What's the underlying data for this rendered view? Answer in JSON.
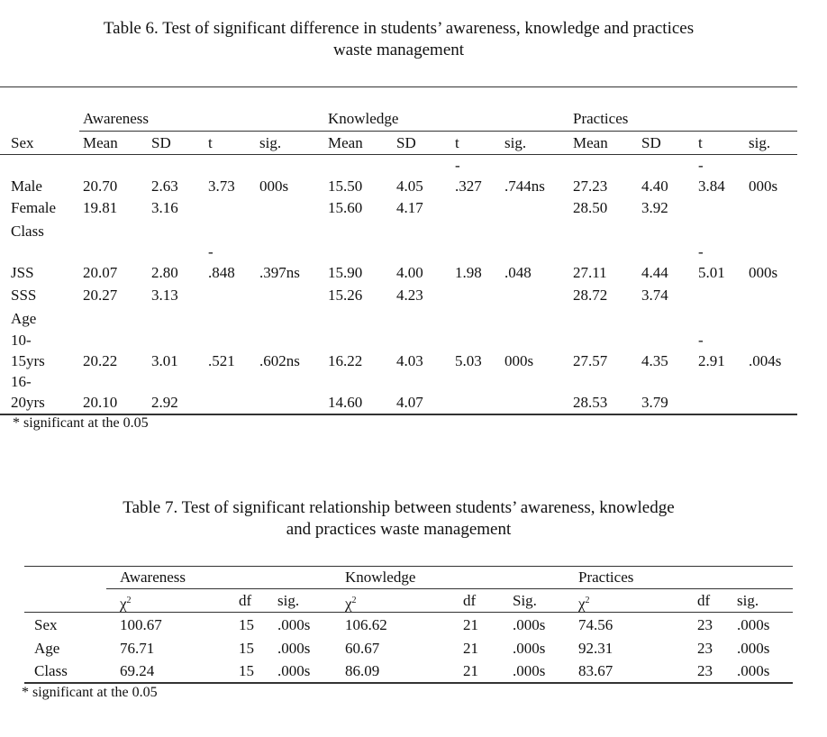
{
  "table6": {
    "title_line1": "Table 6. Test of significant difference in students’ awareness, knowledge and practices",
    "title_line2": "waste management",
    "groups": [
      "Awareness",
      "Knowledge",
      "Practices"
    ],
    "columns": [
      "Sex",
      "Mean",
      "SD",
      "t",
      "sig.",
      "Mean",
      "SD",
      "t",
      "sig.",
      "Mean",
      "SD",
      "t",
      "sig."
    ],
    "rows": [
      [
        "",
        "",
        "",
        "",
        "",
        "",
        "",
        "-",
        "",
        "",
        "",
        "-",
        ""
      ],
      [
        "Male",
        "20.70",
        "2.63",
        "3.73",
        "000s",
        "15.50",
        "4.05",
        ".327",
        ".744ns",
        "27.23",
        "4.40",
        "3.84",
        "000s"
      ],
      [
        "Female",
        "19.81",
        "3.16",
        "",
        "",
        "15.60",
        "4.17",
        "",
        "",
        "28.50",
        "3.92",
        "",
        ""
      ],
      [
        "Class",
        "",
        "",
        "",
        "",
        "",
        "",
        "",
        "",
        "",
        "",
        "",
        ""
      ],
      [
        "",
        "",
        "",
        "-",
        "",
        "",
        "",
        "",
        "",
        "",
        "",
        "-",
        ""
      ],
      [
        "JSS",
        "20.07",
        "2.80",
        ".848",
        ".397ns",
        "15.90",
        "4.00",
        "1.98",
        ".048",
        "27.11",
        "4.44",
        "5.01",
        "000s"
      ],
      [
        "SSS",
        "20.27",
        "3.13",
        "",
        "",
        "15.26",
        "4.23",
        "",
        "",
        "28.72",
        "3.74",
        "",
        ""
      ],
      [
        "Age",
        "",
        "",
        "",
        "",
        "",
        "",
        "",
        "",
        "",
        "",
        "",
        ""
      ],
      [
        "10-",
        "",
        "",
        "",
        "",
        "",
        "",
        "",
        "",
        "",
        "",
        "-",
        ""
      ],
      [
        "15yrs",
        "20.22",
        "3.01",
        ".521",
        ".602ns",
        "16.22",
        "4.03",
        "5.03",
        "000s",
        "27.57",
        "4.35",
        "2.91",
        ".004s"
      ],
      [
        "16-",
        "",
        "",
        "",
        "",
        "",
        "",
        "",
        "",
        "",
        "",
        "",
        ""
      ],
      [
        "20yrs",
        "20.10",
        "2.92",
        "",
        "",
        "14.60",
        "4.07",
        "",
        "",
        "28.53",
        "3.79",
        "",
        ""
      ]
    ],
    "footnote": "* significant at the 0.05"
  },
  "table7": {
    "title_line1": "Table 7. Test of significant relationship between students’ awareness, knowledge",
    "title_line2": "and practices waste management",
    "groups": [
      "Awareness",
      "Knowledge",
      "Practices"
    ],
    "columns": [
      "",
      "χ",
      "df",
      "sig.",
      "χ",
      "df",
      "Sig.",
      "χ",
      "df",
      "sig."
    ],
    "chi_sup": "2",
    "rows": [
      [
        "Sex",
        "100.67",
        "15",
        ".000s",
        "106.62",
        "21",
        ".000s",
        "74.56",
        "23",
        ".000s"
      ],
      [
        "Age",
        "76.71",
        "15",
        ".000s",
        "60.67",
        "21",
        ".000s",
        "92.31",
        "23",
        ".000s"
      ],
      [
        "Class",
        "69.24",
        "15",
        ".000s",
        "86.09",
        "21",
        ".000s",
        "83.67",
        "23",
        ".000s"
      ]
    ],
    "footnote": "* significant at the 0.05"
  }
}
